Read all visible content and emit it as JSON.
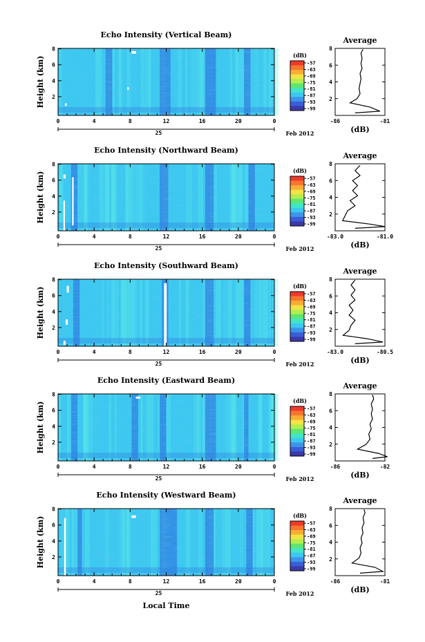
{
  "figure": {
    "x_axis_label": "Local Time",
    "date_label": "Feb 2012",
    "day_label": "25",
    "x_ticks": [
      "0",
      "4",
      "8",
      "12",
      "16",
      "20",
      "0"
    ],
    "y_label": "Height (km)",
    "y_ticks": [
      "8",
      "6",
      "4",
      "2"
    ],
    "cb_unit": "(dB)",
    "avg_title": "Average",
    "avg_xlabel": "(dB)",
    "avg_y_ticks": [
      "8",
      "6",
      "4",
      "2"
    ]
  },
  "chart_data": [
    {
      "type": "heatmap",
      "title": "Echo Intensity (Vertical Beam)",
      "colorbar_ticks": [
        "-57",
        "-63",
        "-69",
        "-75",
        "-81",
        "-87",
        "-93",
        "-99"
      ],
      "profile": {
        "type": "line",
        "title": "Average",
        "xlim": [
          -86,
          -81
        ],
        "xticks": [
          "-86",
          "-81"
        ],
        "ylim": [
          0,
          8
        ],
        "points": [
          [
            -84,
            0.3
          ],
          [
            -81.5,
            0.5
          ],
          [
            -82.5,
            1.0
          ],
          [
            -84.5,
            1.5
          ],
          [
            -83.8,
            2.0
          ],
          [
            -83.5,
            2.6
          ],
          [
            -83.6,
            3.2
          ],
          [
            -83.5,
            3.8
          ],
          [
            -83.4,
            4.4
          ],
          [
            -83.5,
            5.0
          ],
          [
            -83.3,
            5.6
          ],
          [
            -83.4,
            6.2
          ],
          [
            -83.3,
            6.8
          ],
          [
            -83.4,
            7.4
          ],
          [
            -83.2,
            7.9
          ]
        ]
      }
    },
    {
      "type": "heatmap",
      "title": "Echo Intensity (Northward Beam)",
      "colorbar_ticks": [
        "-57",
        "-63",
        "-69",
        "-75",
        "-81",
        "-87",
        "-93",
        "-99"
      ],
      "profile": {
        "type": "line",
        "title": "Average",
        "xlim": [
          -83.0,
          -81.0
        ],
        "xticks": [
          "-83.0",
          "-81.0"
        ],
        "ylim": [
          0,
          8
        ],
        "points": [
          [
            -82.2,
            0.3
          ],
          [
            -81.0,
            0.5
          ],
          [
            -81.6,
            0.8
          ],
          [
            -82.7,
            1.2
          ],
          [
            -82.6,
            1.8
          ],
          [
            -82.5,
            2.4
          ],
          [
            -82.2,
            3.0
          ],
          [
            -82.4,
            3.6
          ],
          [
            -82.1,
            4.2
          ],
          [
            -82.3,
            4.8
          ],
          [
            -82.1,
            5.4
          ],
          [
            -82.3,
            6.0
          ],
          [
            -82.0,
            6.6
          ],
          [
            -82.2,
            7.2
          ],
          [
            -82.0,
            7.8
          ]
        ]
      }
    },
    {
      "type": "heatmap",
      "title": "Echo Intensity (Southward Beam)",
      "colorbar_ticks": [
        "-57",
        "-63",
        "-69",
        "-75",
        "-81",
        "-87",
        "-93",
        "-99"
      ],
      "profile": {
        "type": "line",
        "title": "Average",
        "xlim": [
          -83.0,
          -80.5
        ],
        "xticks": [
          "-83.0",
          "-80.5"
        ],
        "ylim": [
          0,
          8
        ],
        "points": [
          [
            -82.0,
            0.3
          ],
          [
            -80.6,
            0.5
          ],
          [
            -81.4,
            0.9
          ],
          [
            -82.6,
            1.3
          ],
          [
            -82.3,
            1.9
          ],
          [
            -82.2,
            2.5
          ],
          [
            -82.0,
            3.1
          ],
          [
            -82.3,
            3.7
          ],
          [
            -82.1,
            4.3
          ],
          [
            -82.3,
            4.9
          ],
          [
            -82.0,
            5.5
          ],
          [
            -82.2,
            6.1
          ],
          [
            -82.0,
            6.7
          ],
          [
            -82.2,
            7.3
          ],
          [
            -82.0,
            7.9
          ]
        ]
      }
    },
    {
      "type": "heatmap",
      "title": "Echo Intensity (Eastward Beam)",
      "colorbar_ticks": [
        "-57",
        "-63",
        "-69",
        "-75",
        "-81",
        "-87",
        "-93",
        "-99"
      ],
      "profile": {
        "type": "line",
        "title": "Average",
        "xlim": [
          -86,
          -82
        ],
        "xticks": [
          "-86",
          "-82"
        ],
        "ylim": [
          0,
          8
        ],
        "points": [
          [
            -83.0,
            0.3
          ],
          [
            -81.8,
            0.5
          ],
          [
            -82.5,
            0.9
          ],
          [
            -84.2,
            1.4
          ],
          [
            -83.5,
            2.0
          ],
          [
            -83.2,
            2.6
          ],
          [
            -83.3,
            3.2
          ],
          [
            -83.1,
            3.8
          ],
          [
            -83.2,
            4.4
          ],
          [
            -83.0,
            5.0
          ],
          [
            -83.1,
            5.6
          ],
          [
            -83.0,
            6.2
          ],
          [
            -83.1,
            6.8
          ],
          [
            -82.9,
            7.4
          ],
          [
            -83.0,
            7.9
          ]
        ]
      }
    },
    {
      "type": "heatmap",
      "title": "Echo Intensity (Westward Beam)",
      "colorbar_ticks": [
        "-57",
        "-63",
        "-69",
        "-75",
        "-81",
        "-87",
        "-93",
        "-99"
      ],
      "profile": {
        "type": "line",
        "title": "Average",
        "xlim": [
          -86,
          -81
        ],
        "xticks": [
          "-86",
          "-81"
        ],
        "ylim": [
          0,
          8
        ],
        "points": [
          [
            -83.5,
            0.3
          ],
          [
            -81.2,
            0.5
          ],
          [
            -82.0,
            1.0
          ],
          [
            -84.3,
            1.5
          ],
          [
            -83.6,
            2.1
          ],
          [
            -83.4,
            2.7
          ],
          [
            -83.5,
            3.3
          ],
          [
            -83.3,
            3.9
          ],
          [
            -83.4,
            4.5
          ],
          [
            -83.2,
            5.1
          ],
          [
            -83.3,
            5.7
          ],
          [
            -83.1,
            6.3
          ],
          [
            -83.2,
            6.9
          ],
          [
            -83.0,
            7.5
          ],
          [
            -83.1,
            7.9
          ]
        ]
      }
    }
  ],
  "colors": {
    "heat_base": "#3cc8f0",
    "heat_dark": "#2d7fe0",
    "heat_light": "#5ef0e8",
    "gap": "#ffffff",
    "colorbar": [
      "#ef3a2a",
      "#f7762e",
      "#f9ad34",
      "#f4e345",
      "#b4ee4f",
      "#5fe672",
      "#41e6c8",
      "#3cc8f0",
      "#3e95e8",
      "#3a5ed8",
      "#3b3aa8"
    ]
  }
}
